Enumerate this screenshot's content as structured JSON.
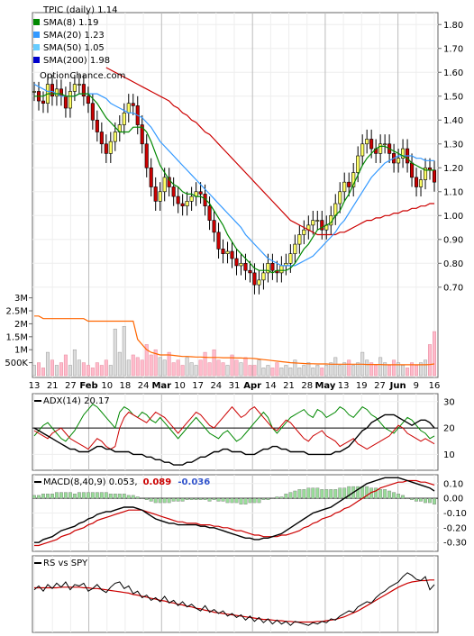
{
  "chart_data": {
    "type": "line",
    "ticker_label": "TPIC (daily) 1.14",
    "watermark": "OptionChance.com",
    "colors": {
      "up": "#ffff66",
      "down": "#cc0000",
      "sma8": "#008800",
      "sma20": "#3399ff",
      "sma50": "#cc0000",
      "sma200": "#ffee00",
      "volume": "#ffbbcc",
      "volume_avg": "#ff6600",
      "adx": "#000000",
      "plus_di": "#008800",
      "minus_di": "#cc0000",
      "macd": "#000000",
      "signal": "#cc0000",
      "hist": "#99dd99",
      "rs": "#000000",
      "rs_avg": "#cc0000"
    },
    "price_panel": {
      "legend": [
        {
          "label": "SMA(8) 1.19",
          "color": "#008800"
        },
        {
          "label": "SMA(20) 1.23",
          "color": "#3399ff"
        },
        {
          "label": "SMA(50) 1.05",
          "color": "#66ccff"
        },
        {
          "label": "SMA(200) 1.98",
          "color": "#0000cc"
        }
      ],
      "y_ticks": [
        "1.80",
        "1.70",
        "1.60",
        "1.50",
        "1.40",
        "1.30",
        "1.20",
        "1.10",
        "1.00",
        "0.90",
        "0.80",
        "0.70"
      ],
      "ylim": [
        0.62,
        1.85
      ],
      "close": [
        1.52,
        1.48,
        1.47,
        1.55,
        1.5,
        1.53,
        1.5,
        1.45,
        1.52,
        1.55,
        1.55,
        1.5,
        1.47,
        1.4,
        1.35,
        1.3,
        1.26,
        1.31,
        1.35,
        1.38,
        1.43,
        1.47,
        1.46,
        1.38,
        1.3,
        1.2,
        1.12,
        1.06,
        1.1,
        1.16,
        1.12,
        1.08,
        1.05,
        1.04,
        1.06,
        1.08,
        1.1,
        1.09,
        1.04,
        0.98,
        0.93,
        0.86,
        0.84,
        0.85,
        0.82,
        0.79,
        0.8,
        0.77,
        0.76,
        0.71,
        0.73,
        0.76,
        0.8,
        0.77,
        0.76,
        0.79,
        0.8,
        0.84,
        0.88,
        0.92,
        0.94,
        0.96,
        0.98,
        0.98,
        0.94,
        0.96,
        1.0,
        1.05,
        1.1,
        1.14,
        1.12,
        1.18,
        1.25,
        1.3,
        1.32,
        1.28,
        1.26,
        1.3,
        1.3,
        1.26,
        1.22,
        1.24,
        1.28,
        1.22,
        1.16,
        1.12,
        1.15,
        1.2,
        1.19,
        1.14
      ],
      "sma8": [
        1.5,
        1.5,
        1.5,
        1.51,
        1.51,
        1.51,
        1.51,
        1.5,
        1.5,
        1.5,
        1.51,
        1.51,
        1.51,
        1.49,
        1.47,
        1.44,
        1.41,
        1.39,
        1.37,
        1.35,
        1.35,
        1.35,
        1.37,
        1.37,
        1.37,
        1.35,
        1.31,
        1.26,
        1.21,
        1.18,
        1.15,
        1.13,
        1.12,
        1.1,
        1.09,
        1.09,
        1.08,
        1.08,
        1.07,
        1.05,
        1.02,
        0.99,
        0.96,
        0.92,
        0.89,
        0.86,
        0.84,
        0.82,
        0.8,
        0.78,
        0.77,
        0.77,
        0.77,
        0.76,
        0.77,
        0.77,
        0.77,
        0.78,
        0.8,
        0.83,
        0.86,
        0.88,
        0.91,
        0.94,
        0.95,
        0.96,
        0.97,
        1.0,
        1.02,
        1.06,
        1.09,
        1.13,
        1.17,
        1.21,
        1.24,
        1.26,
        1.28,
        1.29,
        1.29,
        1.28,
        1.27,
        1.26,
        1.25,
        1.24,
        1.22,
        1.21,
        1.2,
        1.19,
        1.19,
        1.19
      ],
      "sma20": [
        1.55,
        1.54,
        1.53,
        1.52,
        1.52,
        1.51,
        1.5,
        1.5,
        1.5,
        1.5,
        1.51,
        1.51,
        1.51,
        1.51,
        1.51,
        1.5,
        1.49,
        1.47,
        1.46,
        1.45,
        1.44,
        1.43,
        1.43,
        1.42,
        1.41,
        1.39,
        1.37,
        1.34,
        1.31,
        1.29,
        1.27,
        1.25,
        1.23,
        1.21,
        1.19,
        1.17,
        1.15,
        1.13,
        1.11,
        1.09,
        1.07,
        1.05,
        1.03,
        1.01,
        0.99,
        0.97,
        0.95,
        0.92,
        0.9,
        0.88,
        0.86,
        0.84,
        0.82,
        0.81,
        0.8,
        0.79,
        0.79,
        0.79,
        0.79,
        0.8,
        0.81,
        0.82,
        0.83,
        0.85,
        0.87,
        0.89,
        0.91,
        0.93,
        0.96,
        0.98,
        1.01,
        1.04,
        1.07,
        1.1,
        1.13,
        1.16,
        1.18,
        1.2,
        1.22,
        1.23,
        1.24,
        1.25,
        1.25,
        1.25,
        1.25,
        1.24,
        1.24,
        1.23,
        1.23,
        1.23
      ],
      "sma50": [
        null,
        null,
        null,
        null,
        null,
        null,
        null,
        null,
        null,
        null,
        null,
        null,
        null,
        null,
        null,
        null,
        1.62,
        1.61,
        1.6,
        1.59,
        1.58,
        1.57,
        1.56,
        1.55,
        1.54,
        1.53,
        1.52,
        1.51,
        1.5,
        1.49,
        1.48,
        1.46,
        1.45,
        1.43,
        1.42,
        1.4,
        1.39,
        1.37,
        1.35,
        1.34,
        1.32,
        1.3,
        1.28,
        1.26,
        1.24,
        1.22,
        1.2,
        1.18,
        1.16,
        1.14,
        1.12,
        1.1,
        1.08,
        1.06,
        1.04,
        1.02,
        1.0,
        0.98,
        0.97,
        0.96,
        0.95,
        0.94,
        0.93,
        0.92,
        0.92,
        0.92,
        0.92,
        0.92,
        0.93,
        0.93,
        0.94,
        0.95,
        0.96,
        0.97,
        0.98,
        0.98,
        0.99,
        0.99,
        1.0,
        1.0,
        1.01,
        1.01,
        1.02,
        1.02,
        1.03,
        1.03,
        1.04,
        1.04,
        1.05,
        1.05
      ]
    },
    "volume_panel": {
      "y_ticks": [
        "3M",
        "2.5M",
        "2M",
        "1.5M",
        "1M",
        "500K"
      ],
      "ylim": [
        0,
        3.3
      ],
      "volume_m": [
        0.4,
        0.5,
        0.3,
        0.9,
        0.6,
        0.4,
        0.5,
        0.8,
        0.4,
        1.0,
        0.6,
        0.5,
        0.4,
        0.3,
        0.5,
        0.4,
        0.6,
        0.4,
        1.8,
        0.9,
        1.9,
        0.6,
        0.8,
        0.7,
        0.6,
        1.2,
        0.8,
        1.0,
        0.7,
        0.6,
        0.9,
        0.5,
        0.6,
        0.4,
        0.7,
        0.5,
        0.4,
        0.6,
        0.9,
        0.5,
        1.0,
        0.6,
        0.5,
        0.4,
        0.8,
        0.6,
        0.5,
        0.7,
        0.4,
        0.4,
        0.6,
        0.3,
        0.4,
        0.3,
        0.5,
        0.3,
        0.4,
        0.3,
        0.6,
        0.3,
        0.4,
        0.5,
        0.3,
        0.4,
        0.3,
        0.4,
        0.5,
        0.7,
        0.4,
        0.5,
        0.6,
        0.4,
        0.5,
        0.9,
        0.6,
        0.5,
        0.4,
        0.7,
        0.5,
        0.4,
        0.6,
        0.5,
        0.4,
        0.3,
        0.5,
        0.4,
        0.5,
        0.6,
        1.2,
        1.7
      ],
      "avg_m": [
        2.3,
        2.3,
        2.2,
        2.2,
        2.2,
        2.2,
        2.2,
        2.2,
        2.2,
        2.2,
        2.2,
        2.2,
        2.1,
        2.1,
        2.1,
        2.1,
        2.1,
        2.1,
        2.1,
        2.1,
        2.1,
        2.1,
        2.1,
        1.4,
        1.2,
        1.0,
        0.9,
        0.85,
        0.8,
        0.8,
        0.8,
        0.78,
        0.76,
        0.74,
        0.74,
        0.73,
        0.72,
        0.72,
        0.71,
        0.7,
        0.7,
        0.7,
        0.69,
        0.69,
        0.69,
        0.68,
        0.68,
        0.67,
        0.67,
        0.66,
        0.64,
        0.62,
        0.6,
        0.58,
        0.56,
        0.54,
        0.52,
        0.5,
        0.49,
        0.48,
        0.47,
        0.46,
        0.46,
        0.45,
        0.45,
        0.45,
        0.44,
        0.44,
        0.44,
        0.44,
        0.44,
        0.44,
        0.44,
        0.44,
        0.43,
        0.43,
        0.43,
        0.43,
        0.42,
        0.42,
        0.42,
        0.42,
        0.42,
        0.42,
        0.42,
        0.42,
        0.42,
        0.42,
        0.43,
        0.45
      ]
    },
    "x_axis": {
      "labels": [
        "13",
        "21",
        "27",
        "Feb",
        "10",
        "18",
        "24",
        "Mar",
        "10",
        "17",
        "24",
        "31",
        "Apr",
        "14",
        "21",
        "28",
        "May",
        "13",
        "19",
        "27",
        "Jun",
        "9",
        "16"
      ],
      "bold": [
        "Feb",
        "Mar",
        "Apr",
        "May",
        "Jun"
      ]
    },
    "adx_panel": {
      "label": "ADX(14) 20.17",
      "y_ticks": [
        "30",
        "20",
        "10"
      ],
      "ylim": [
        4,
        33
      ],
      "adx": [
        20,
        19,
        18,
        17,
        16,
        15,
        14,
        13,
        12,
        12,
        11,
        11,
        11,
        12,
        13,
        13,
        12,
        12,
        11,
        11,
        11,
        11,
        10,
        10,
        10,
        9,
        9,
        8,
        8,
        7,
        7,
        6,
        6,
        6,
        7,
        7,
        8,
        9,
        9,
        10,
        11,
        11,
        12,
        12,
        11,
        11,
        11,
        10,
        10,
        10,
        11,
        12,
        12,
        13,
        13,
        12,
        12,
        11,
        11,
        11,
        11,
        10,
        10,
        10,
        10,
        10,
        10,
        11,
        11,
        12,
        13,
        15,
        17,
        19,
        20,
        22,
        23,
        24,
        25,
        25,
        25,
        24,
        23,
        22,
        21,
        22,
        23,
        23,
        22,
        20
      ],
      "plus_di": [
        17,
        19,
        21,
        22,
        20,
        18,
        16,
        15,
        17,
        19,
        22,
        25,
        27,
        29,
        28,
        26,
        24,
        22,
        20,
        26,
        28,
        27,
        25,
        24,
        26,
        25,
        23,
        22,
        24,
        22,
        20,
        18,
        16,
        18,
        20,
        22,
        24,
        22,
        20,
        18,
        17,
        16,
        18,
        19,
        17,
        15,
        16,
        18,
        20,
        22,
        24,
        26,
        24,
        20,
        18,
        20,
        22,
        24,
        25,
        26,
        27,
        25,
        24,
        27,
        26,
        24,
        25,
        26,
        28,
        27,
        25,
        24,
        26,
        28,
        27,
        25,
        24,
        22,
        20,
        19,
        18,
        20,
        22,
        24,
        23,
        21,
        19,
        18,
        16,
        17
      ],
      "minus_di": [
        19,
        18,
        17,
        16,
        18,
        19,
        20,
        18,
        16,
        15,
        14,
        13,
        12,
        14,
        16,
        15,
        13,
        12,
        13,
        20,
        24,
        26,
        25,
        24,
        23,
        22,
        24,
        26,
        25,
        24,
        22,
        20,
        18,
        20,
        22,
        24,
        26,
        25,
        23,
        21,
        20,
        22,
        24,
        26,
        28,
        26,
        24,
        25,
        27,
        28,
        26,
        24,
        22,
        20,
        19,
        21,
        23,
        22,
        20,
        18,
        16,
        15,
        17,
        18,
        19,
        17,
        16,
        15,
        13,
        14,
        15,
        16,
        14,
        13,
        12,
        13,
        14,
        15,
        16,
        17,
        19,
        21,
        20,
        18,
        17,
        16,
        15,
        16,
        15,
        14
      ]
    },
    "macd_panel": {
      "label_prefix": "MACD(8,40,9) 0.053,",
      "signal_value": "0.089",
      "hist_value": "-0.036",
      "y_ticks": [
        "0.10",
        "0.00",
        "-0.10",
        "-0.20",
        "-0.30"
      ],
      "ylim": [
        -0.36,
        0.16
      ],
      "macd": [
        -0.3,
        -0.3,
        -0.28,
        -0.27,
        -0.26,
        -0.24,
        -0.22,
        -0.21,
        -0.2,
        -0.19,
        -0.17,
        -0.16,
        -0.14,
        -0.13,
        -0.11,
        -0.1,
        -0.09,
        -0.09,
        -0.08,
        -0.07,
        -0.06,
        -0.06,
        -0.06,
        -0.07,
        -0.08,
        -0.1,
        -0.12,
        -0.14,
        -0.15,
        -0.16,
        -0.17,
        -0.17,
        -0.18,
        -0.18,
        -0.18,
        -0.18,
        -0.18,
        -0.19,
        -0.19,
        -0.2,
        -0.2,
        -0.21,
        -0.22,
        -0.23,
        -0.24,
        -0.25,
        -0.26,
        -0.27,
        -0.27,
        -0.28,
        -0.28,
        -0.27,
        -0.27,
        -0.26,
        -0.25,
        -0.24,
        -0.22,
        -0.2,
        -0.18,
        -0.16,
        -0.14,
        -0.12,
        -0.1,
        -0.09,
        -0.08,
        -0.07,
        -0.06,
        -0.04,
        -0.02,
        0.0,
        0.02,
        0.04,
        0.06,
        0.08,
        0.1,
        0.11,
        0.12,
        0.13,
        0.14,
        0.14,
        0.14,
        0.14,
        0.13,
        0.12,
        0.11,
        0.1,
        0.09,
        0.08,
        0.07,
        0.05
      ],
      "signal": [
        -0.32,
        -0.32,
        -0.31,
        -0.3,
        -0.29,
        -0.28,
        -0.26,
        -0.25,
        -0.24,
        -0.22,
        -0.21,
        -0.2,
        -0.18,
        -0.17,
        -0.15,
        -0.14,
        -0.13,
        -0.12,
        -0.11,
        -0.1,
        -0.09,
        -0.08,
        -0.08,
        -0.08,
        -0.08,
        -0.09,
        -0.1,
        -0.11,
        -0.12,
        -0.13,
        -0.14,
        -0.15,
        -0.16,
        -0.16,
        -0.17,
        -0.17,
        -0.17,
        -0.18,
        -0.18,
        -0.18,
        -0.19,
        -0.19,
        -0.2,
        -0.2,
        -0.21,
        -0.22,
        -0.22,
        -0.23,
        -0.24,
        -0.25,
        -0.25,
        -0.26,
        -0.26,
        -0.26,
        -0.26,
        -0.25,
        -0.25,
        -0.24,
        -0.23,
        -0.22,
        -0.2,
        -0.19,
        -0.17,
        -0.16,
        -0.14,
        -0.13,
        -0.12,
        -0.1,
        -0.09,
        -0.07,
        -0.06,
        -0.04,
        -0.02,
        0.0,
        0.02,
        0.04,
        0.05,
        0.07,
        0.08,
        0.09,
        0.1,
        0.11,
        0.11,
        0.12,
        0.12,
        0.12,
        0.11,
        0.11,
        0.1,
        0.09
      ]
    },
    "rs_panel": {
      "label": "RS vs SPY",
      "ylim": [
        0,
        100
      ],
      "rs": [
        62,
        68,
        60,
        70,
        64,
        72,
        66,
        74,
        62,
        70,
        68,
        72,
        60,
        64,
        70,
        62,
        58,
        66,
        72,
        74,
        64,
        68,
        56,
        60,
        50,
        54,
        46,
        50,
        44,
        52,
        42,
        46,
        38,
        44,
        36,
        40,
        34,
        30,
        38,
        28,
        32,
        26,
        30,
        22,
        26,
        20,
        24,
        16,
        22,
        14,
        20,
        12,
        18,
        10,
        16,
        10,
        14,
        8,
        14,
        12,
        10,
        8,
        12,
        10,
        14,
        12,
        18,
        16,
        22,
        26,
        30,
        28,
        36,
        40,
        44,
        42,
        50,
        56,
        60,
        66,
        70,
        74,
        82,
        88,
        84,
        78,
        76,
        82,
        62,
        70
      ],
      "rs_avg": [
        65,
        65,
        65,
        65,
        65,
        65,
        66,
        66,
        66,
        66,
        66,
        65,
        65,
        64,
        64,
        63,
        62,
        61,
        60,
        59,
        58,
        57,
        55,
        54,
        52,
        51,
        49,
        48,
        46,
        45,
        43,
        42,
        40,
        39,
        37,
        36,
        34,
        33,
        31,
        30,
        28,
        27,
        26,
        25,
        24,
        23,
        22,
        21,
        20,
        19,
        18,
        17,
        17,
        16,
        15,
        15,
        14,
        14,
        13,
        13,
        13,
        13,
        13,
        14,
        14,
        15,
        16,
        17,
        19,
        21,
        24,
        27,
        30,
        34,
        38,
        42,
        46,
        50,
        54,
        58,
        62,
        66,
        69,
        72,
        74,
        75,
        76,
        76,
        77,
        77
      ]
    }
  }
}
